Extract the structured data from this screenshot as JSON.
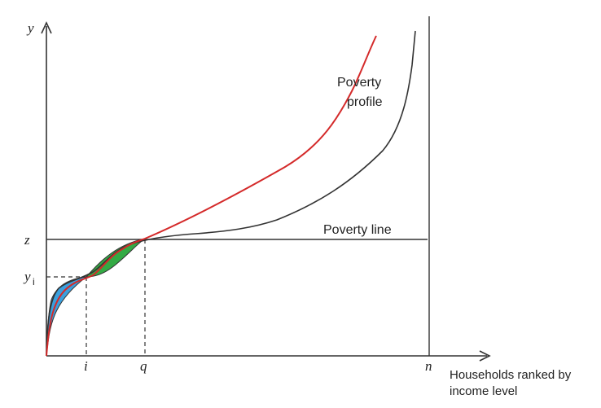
{
  "axes": {
    "y_label": "y",
    "x_caption_line1": "Households ranked by",
    "x_caption_line2": "income level"
  },
  "y_ticks": {
    "z": "z",
    "yi_main": "y",
    "yi_sub": "i"
  },
  "x_ticks": {
    "i": "i",
    "q": "q",
    "n": "n"
  },
  "annotations": {
    "poverty_profile_line1": "Poverty",
    "poverty_profile_line2": "profile",
    "poverty_line": "Poverty line"
  },
  "colors": {
    "axis": "#333333",
    "original_curve": "#333333",
    "new_curve": "#d42a2a",
    "gain_area": "#3aa0de",
    "loss_area": "#33aa44",
    "background": "#ffffff"
  }
}
